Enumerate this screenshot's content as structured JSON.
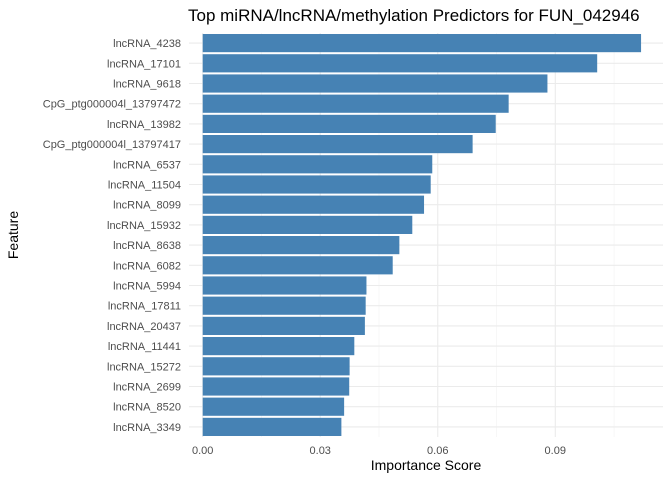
{
  "chart_data": {
    "type": "bar",
    "orientation": "horizontal",
    "title": "Top miRNA/lncRNA/methylation Predictors for FUN_042946",
    "xlabel": "Importance Score",
    "ylabel": "Feature",
    "xlim": [
      -0.0035,
      0.1175
    ],
    "xticks": [
      0.0,
      0.03,
      0.06,
      0.09
    ],
    "xtick_labels": [
      "0.00",
      "0.03",
      "0.06",
      "0.09"
    ],
    "grid": true,
    "bar_color": "#4682B4",
    "categories": [
      "lncRNA_4238",
      "lncRNA_17101",
      "lncRNA_9618",
      "CpG_ptg000004l_13797472",
      "lncRNA_13982",
      "CpG_ptg000004l_13797417",
      "lncRNA_6537",
      "lncRNA_11504",
      "lncRNA_8099",
      "lncRNA_15932",
      "lncRNA_8638",
      "lncRNA_6082",
      "lncRNA_5994",
      "lncRNA_17811",
      "lncRNA_20437",
      "lncRNA_11441",
      "lncRNA_15272",
      "lncRNA_2699",
      "lncRNA_8520",
      "lncRNA_3349"
    ],
    "values": [
      0.1119,
      0.1007,
      0.088,
      0.0781,
      0.0748,
      0.0689,
      0.0586,
      0.0582,
      0.0565,
      0.0535,
      0.0502,
      0.0485,
      0.0418,
      0.0416,
      0.0414,
      0.0387,
      0.0375,
      0.0374,
      0.0361,
      0.0354
    ]
  }
}
